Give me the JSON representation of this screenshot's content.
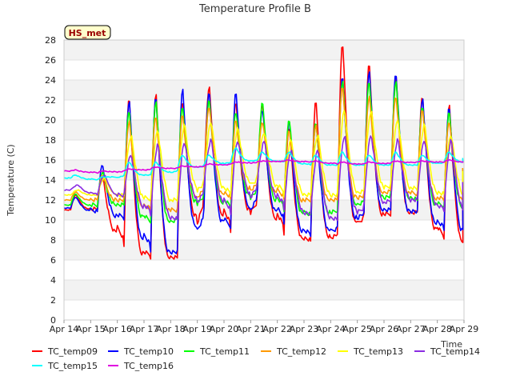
{
  "chart_data": {
    "type": "line",
    "title": "Temperature Profile B",
    "xlabel": "Time",
    "ylabel": "Temperature (C)",
    "badge": "HS_met",
    "ylim": [
      0,
      28
    ],
    "yticks": [
      0,
      2,
      4,
      6,
      8,
      10,
      12,
      14,
      16,
      18,
      20,
      22,
      24,
      26,
      28
    ],
    "xlim": [
      "2024-04-14",
      "2024-04-29"
    ],
    "xtick_labels": [
      "Apr 14",
      "Apr 15",
      "Apr 16",
      "Apr 17",
      "Apr 18",
      "Apr 19",
      "Apr 20",
      "Apr 21",
      "Apr 22",
      "Apr 23",
      "Apr 24",
      "Apr 25",
      "Apr 26",
      "Apr 27",
      "Apr 28",
      "Apr 29"
    ],
    "grid": true,
    "legend_position": "bottom",
    "x_dates": [
      "Apr 14",
      "Apr 15",
      "Apr 16",
      "Apr 17",
      "Apr 18",
      "Apr 19",
      "Apr 20",
      "Apr 21",
      "Apr 22",
      "Apr 23",
      "Apr 24",
      "Apr 25",
      "Apr 26",
      "Apr 27",
      "Apr 28"
    ],
    "series": [
      {
        "name": "TC_temp09",
        "color": "#ff0000",
        "daily_max": [
          12.5,
          14.5,
          22.3,
          22.8,
          22.0,
          23.5,
          22.0,
          21.5,
          19.5,
          22.0,
          28.0,
          25.8,
          24.5,
          22.5,
          21.7
        ],
        "daily_min": [
          11.0,
          11.2,
          7.3,
          6.3,
          6.2,
          13.2,
          8.8,
          12.6,
          8.6,
          7.8,
          8.7,
          10.6,
          10.6,
          10.8,
          7.9
        ]
      },
      {
        "name": "TC_temp10",
        "color": "#0000ff",
        "daily_max": [
          12.3,
          15.5,
          22.0,
          22.5,
          23.3,
          23.0,
          22.8,
          21.2,
          20.0,
          20.0,
          24.5,
          25.0,
          24.8,
          22.3,
          21.5
        ],
        "daily_min": [
          11.2,
          10.8,
          10.2,
          6.8,
          6.8,
          11.2,
          9.0,
          13.0,
          9.5,
          8.5,
          9.3,
          11.0,
          11.0,
          10.8,
          9.0
        ]
      },
      {
        "name": "TC_temp11",
        "color": "#00ff00",
        "daily_max": [
          12.6,
          14.8,
          21.0,
          22.0,
          21.5,
          22.0,
          21.0,
          21.8,
          20.3,
          19.8,
          24.0,
          24.0,
          24.0,
          21.5,
          20.8
        ],
        "daily_min": [
          11.5,
          11.5,
          11.5,
          9.5,
          10.2,
          13.0,
          11.0,
          13.5,
          11.0,
          10.5,
          11.0,
          12.0,
          12.5,
          12.0,
          11.3
        ]
      },
      {
        "name": "TC_temp12",
        "color": "#ff9900",
        "daily_max": [
          12.8,
          14.5,
          20.0,
          20.5,
          20.5,
          21.5,
          20.0,
          20.0,
          19.0,
          19.5,
          23.5,
          22.5,
          22.5,
          21.0,
          20.0
        ],
        "daily_min": [
          12.0,
          12.0,
          12.0,
          11.0,
          11.0,
          13.5,
          12.0,
          14.0,
          12.0,
          12.0,
          12.0,
          12.5,
          13.0,
          12.5,
          12.0
        ]
      },
      {
        "name": "TC_temp13",
        "color": "#ffff00",
        "daily_max": [
          13.0,
          14.2,
          18.5,
          19.0,
          19.5,
          19.8,
          19.2,
          18.8,
          18.0,
          18.5,
          21.0,
          21.0,
          20.0,
          19.5,
          18.5
        ],
        "daily_min": [
          12.5,
          12.5,
          12.5,
          12.0,
          12.0,
          14.0,
          12.5,
          14.5,
          12.5,
          12.5,
          12.5,
          13.0,
          13.5,
          13.0,
          12.5
        ]
      },
      {
        "name": "TC_temp14",
        "color": "#8a2be2",
        "daily_max": [
          13.5,
          14.5,
          16.5,
          17.5,
          17.8,
          18.0,
          18.0,
          17.8,
          17.0,
          17.0,
          18.5,
          18.5,
          18.0,
          18.0,
          18.0
        ],
        "daily_min": [
          13.0,
          12.5,
          12.5,
          10.5,
          10.0,
          13.5,
          10.5,
          14.0,
          11.0,
          10.5,
          10.0,
          11.5,
          12.0,
          12.0,
          11.0
        ]
      },
      {
        "name": "TC_temp15",
        "color": "#00ffff",
        "daily_max": [
          14.5,
          14.3,
          15.8,
          15.8,
          16.5,
          16.5,
          17.2,
          16.8,
          16.8,
          16.5,
          16.8,
          16.5,
          16.8,
          16.5,
          16.8
        ],
        "daily_min": [
          14.2,
          14.0,
          14.5,
          14.5,
          15.0,
          15.5,
          15.8,
          16.0,
          15.8,
          15.5,
          15.5,
          15.5,
          15.5,
          15.5,
          15.8
        ]
      },
      {
        "name": "TC_temp16",
        "color": "#e000e0",
        "daily_max": [
          15.0,
          14.9,
          15.1,
          15.3,
          15.4,
          15.6,
          15.8,
          15.9,
          16.0,
          15.9,
          15.8,
          15.8,
          15.9,
          15.9,
          16.0
        ],
        "daily_min": [
          14.9,
          14.7,
          14.9,
          15.1,
          15.2,
          15.4,
          15.6,
          15.8,
          15.9,
          15.8,
          15.6,
          15.6,
          15.7,
          15.8,
          15.8
        ]
      }
    ]
  }
}
